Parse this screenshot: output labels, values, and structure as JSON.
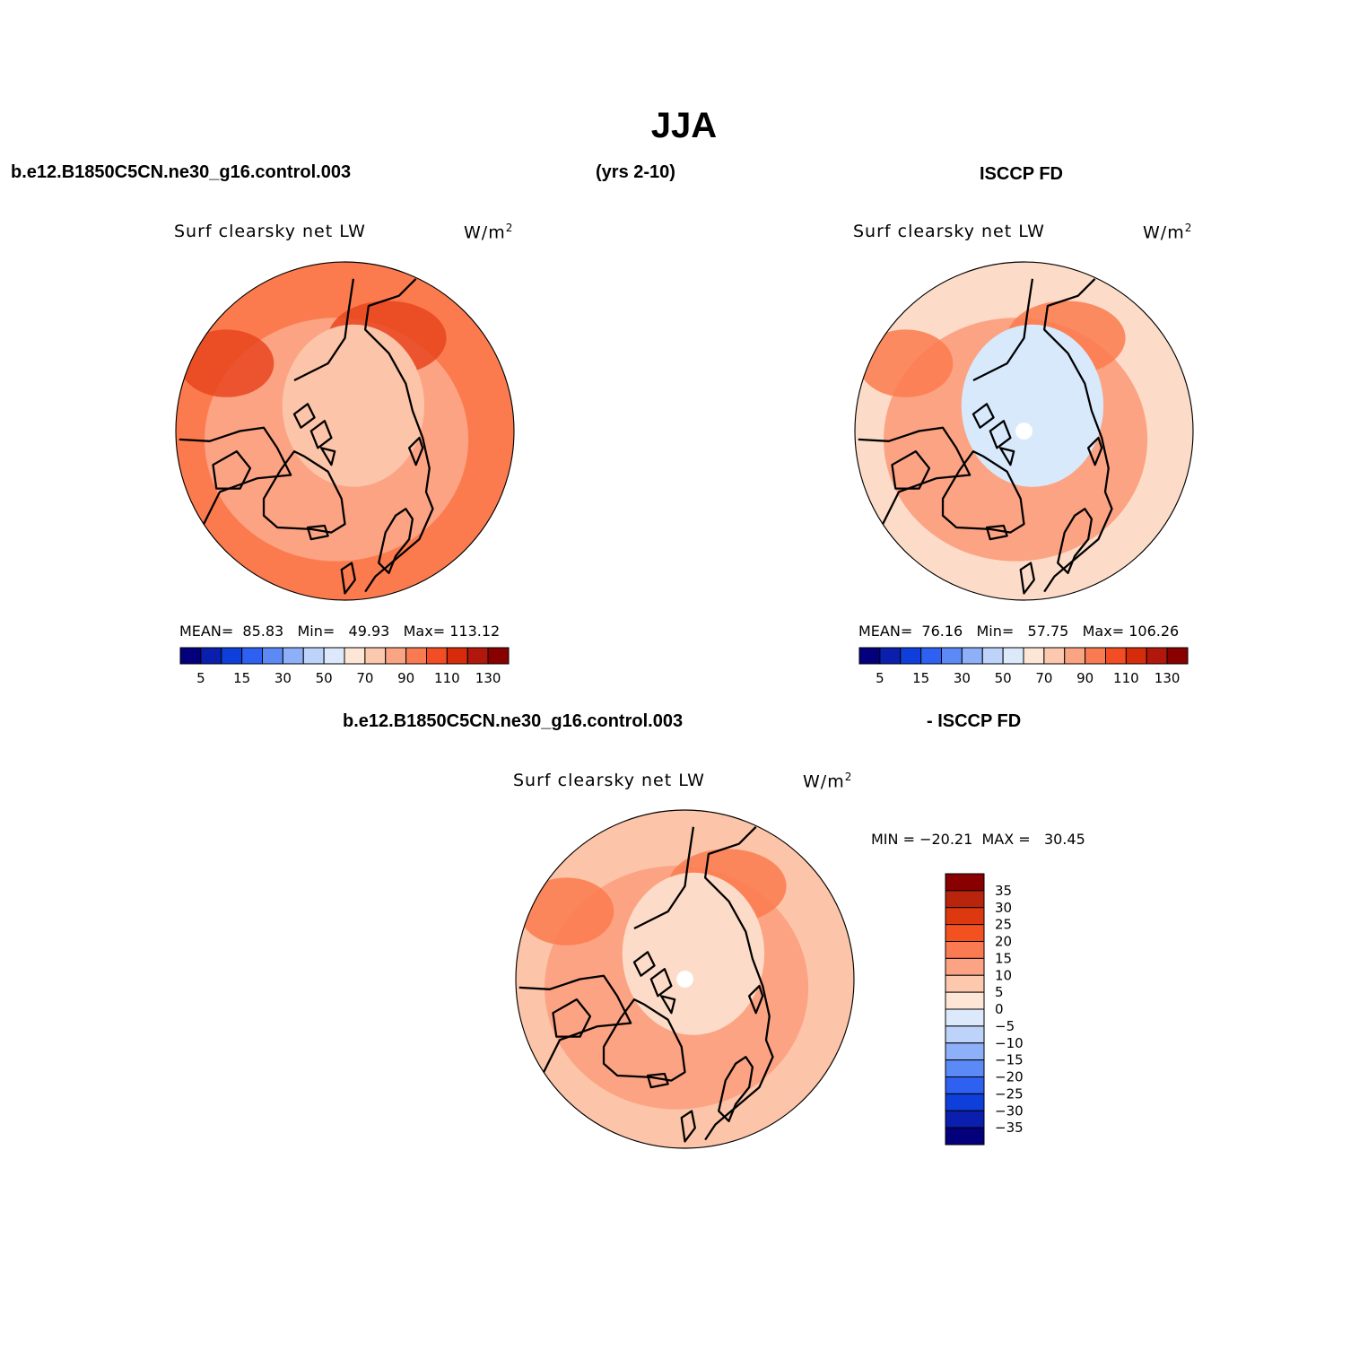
{
  "title": "JJA",
  "header": {
    "model_case": "b.e12.B1850C5CN.ne30_g16.control.003",
    "years": "(yrs 2-10)",
    "obs": "ISCCP FD",
    "diff_case": "b.e12.B1850C5CN.ne30_g16.control.003",
    "diff_obs": "- ISCCP FD"
  },
  "panels": [
    {
      "variable": "Surf clearsky net LW",
      "units": "W/m",
      "units_exp": "2",
      "stats": {
        "mean_label": "MEAN=",
        "mean": "85.83",
        "min_label": "Min=",
        "min": "49.93",
        "max_label": "Max=",
        "max": "113.12"
      },
      "field_colors": {
        "background": "#fc7b4e",
        "ring": "#fca384",
        "core": "#fcc4a8",
        "accent": "#e8461f"
      }
    },
    {
      "variable": "Surf clearsky net LW",
      "units": "W/m",
      "units_exp": "2",
      "stats": {
        "mean_label": "MEAN=",
        "mean": "76.16",
        "min_label": "Min=",
        "min": "57.75",
        "max_label": "Max=",
        "max": "106.26"
      },
      "field_colors": {
        "background": "#fcdcc8",
        "ring": "#fca384",
        "core": "#d8e9fc",
        "accent": "#fc7b4e"
      }
    },
    {
      "variable": "Surf clearsky net LW",
      "units": "W/m",
      "units_exp": "2",
      "stats": {
        "min_label": "MIN =",
        "min": "−20.21",
        "max_label": "MAX =",
        "max": "30.45"
      },
      "field_colors": {
        "background": "#fcc4a8",
        "ring": "#fca384",
        "core": "#fcdcc8",
        "accent": "#fc7b4e"
      }
    }
  ],
  "colorbars": {
    "abs": {
      "colors": [
        "#04007c",
        "#0a1fad",
        "#0e3fdb",
        "#2e60f2",
        "#5b89f5",
        "#8eb0f8",
        "#bed3fa",
        "#dce9fb",
        "#fde6d6",
        "#fcc8ae",
        "#fba484",
        "#fa7b52",
        "#f24d23",
        "#d62c0b",
        "#b2170c",
        "#890000"
      ],
      "tick_labels": [
        "5",
        "15",
        "30",
        "50",
        "70",
        "90",
        "110",
        "130"
      ]
    },
    "diff": {
      "colors": [
        "#890000",
        "#b9250c",
        "#dd3810",
        "#f35120",
        "#fa7b52",
        "#fca384",
        "#fcc8ae",
        "#fde6d6",
        "#dce9fb",
        "#bed3fa",
        "#8eb0f8",
        "#5b89f5",
        "#2e60f2",
        "#0e3fdb",
        "#0a1fad",
        "#04007c"
      ],
      "tick_labels": [
        "35",
        "30",
        "25",
        "20",
        "15",
        "10",
        "5",
        "0",
        "−5",
        "−10",
        "−15",
        "−20",
        "−25",
        "−30",
        "−35"
      ]
    }
  },
  "map": {
    "projection": "north polar stereographic",
    "coastline_color": "#000000",
    "missing_color": "#ffffff"
  }
}
